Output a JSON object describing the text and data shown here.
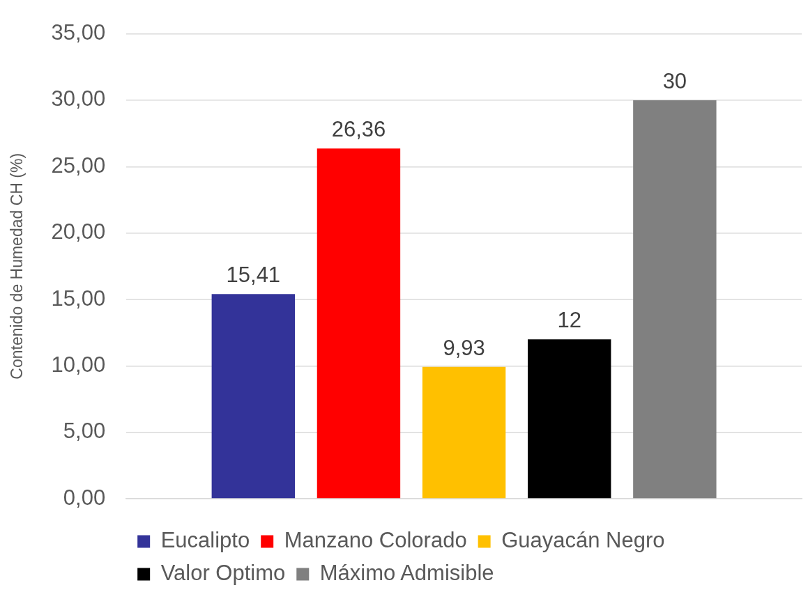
{
  "chart_data": {
    "type": "bar",
    "ylabel": "Contenido de Humedad CH (%)",
    "categories": [
      null
    ],
    "series": [
      {
        "name": "Eucalipto",
        "color": "#333399",
        "values": [
          15.41
        ],
        "value_labels": [
          "15,41"
        ]
      },
      {
        "name": "Manzano Colorado",
        "color": "#ff0000",
        "values": [
          26.36
        ],
        "value_labels": [
          "26,36"
        ]
      },
      {
        "name": "Guayacán Negro",
        "color": "#ffc000",
        "values": [
          9.93
        ],
        "value_labels": [
          "9,93"
        ]
      },
      {
        "name": "Valor Optimo",
        "color": "#000000",
        "values": [
          12
        ],
        "value_labels": [
          "12"
        ]
      },
      {
        "name": "Máximo Admisible",
        "color": "#808080",
        "values": [
          30
        ],
        "value_labels": [
          "30"
        ]
      }
    ],
    "ylim": [
      0,
      35
    ],
    "yticks": [
      {
        "value": 0,
        "label": "0,00"
      },
      {
        "value": 5,
        "label": "5,00"
      },
      {
        "value": 10,
        "label": "10,00"
      },
      {
        "value": 15,
        "label": "15,00"
      },
      {
        "value": 20,
        "label": "20,00"
      },
      {
        "value": 25,
        "label": "25,00"
      },
      {
        "value": 30,
        "label": "30,00"
      },
      {
        "value": 35,
        "label": "35,00"
      }
    ],
    "grid": "y",
    "legend": "bottom"
  }
}
